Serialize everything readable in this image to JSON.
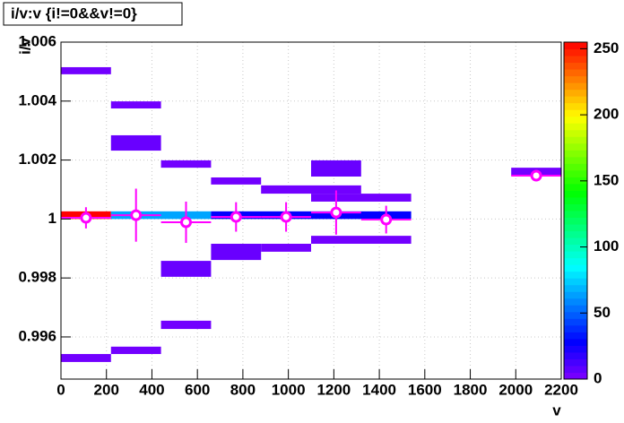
{
  "chart_data": {
    "type": "heatmap",
    "title": "i/v:v {i!=0&&v!=0}",
    "x_label": "v",
    "y_label": "i/v",
    "xlim": [
      0,
      2200
    ],
    "ylim": [
      0.99457,
      1.006
    ],
    "zlim": [
      0,
      255
    ],
    "xticks": [
      0,
      200,
      400,
      600,
      800,
      1000,
      1200,
      1400,
      1600,
      1800,
      2000,
      2200
    ],
    "yticks": [
      0.996,
      0.998,
      1,
      1.002,
      1.004,
      1.006
    ],
    "zticks": [
      0,
      50,
      100,
      150,
      200,
      250
    ],
    "grid": true,
    "colormap": "rainbow",
    "cells": [
      {
        "x": [
          0,
          220
        ],
        "y": [
          1.00491,
          1.00515
        ],
        "z": 3
      },
      {
        "x": [
          220,
          440
        ],
        "y": [
          1.00375,
          1.00399
        ],
        "z": 3
      },
      {
        "x": [
          220,
          440
        ],
        "y": [
          1.00232,
          1.00284
        ],
        "z": 5
      },
      {
        "x": [
          440,
          660
        ],
        "y": [
          1.00174,
          1.00199
        ],
        "z": 3
      },
      {
        "x": [
          660,
          880
        ],
        "y": [
          1.00117,
          1.00141
        ],
        "z": 3
      },
      {
        "x": [
          880,
          1100
        ],
        "y": [
          1.00086,
          1.00114
        ],
        "z": 3
      },
      {
        "x": [
          1100,
          1320
        ],
        "y": [
          1.00144,
          1.00199
        ],
        "z": 5
      },
      {
        "x": [
          1100,
          1320
        ],
        "y": [
          1.00086,
          1.00114
        ],
        "z": 3
      },
      {
        "x": [
          1100,
          1540
        ],
        "y": [
          1.00059,
          1.00086
        ],
        "z": 3
      },
      {
        "x": [
          0,
          220
        ],
        "y": [
          1.0,
          1.00026
        ],
        "z": 255
      },
      {
        "x": [
          220,
          660
        ],
        "y": [
          1.0,
          1.00026
        ],
        "z": 65
      },
      {
        "x": [
          660,
          1540
        ],
        "y": [
          1.0,
          1.00026
        ],
        "z": 28
      },
      {
        "x": [
          1100,
          1540
        ],
        "y": [
          0.99916,
          0.99943
        ],
        "z": 3
      },
      {
        "x": [
          880,
          1100
        ],
        "y": [
          0.99889,
          0.99916
        ],
        "z": 3
      },
      {
        "x": [
          660,
          880
        ],
        "y": [
          0.99861,
          0.99916
        ],
        "z": 5
      },
      {
        "x": [
          440,
          660
        ],
        "y": [
          0.99804,
          0.99858
        ],
        "z": 5
      },
      {
        "x": [
          440,
          660
        ],
        "y": [
          0.99627,
          0.99655
        ],
        "z": 3
      },
      {
        "x": [
          220,
          440
        ],
        "y": [
          0.99542,
          0.99567
        ],
        "z": 3
      },
      {
        "x": [
          0,
          220
        ],
        "y": [
          0.99515,
          0.99542
        ],
        "z": 3
      },
      {
        "x": [
          1980,
          2200
        ],
        "y": [
          1.00147,
          1.00174
        ],
        "z": 3
      }
    ],
    "profile": {
      "color": "#ff00ff",
      "xerr": 110,
      "x": [
        110,
        330,
        550,
        770,
        990,
        1210,
        1430,
        2090
      ],
      "values": [
        1.00004,
        1.00013,
        0.99989,
        1.00007,
        1.00007,
        1.00022,
        0.99998,
        1.00147
      ],
      "errors": [
        0.00036,
        0.0009,
        0.0007,
        0.0005,
        0.0005,
        0.00075,
        0.00047,
        0
      ]
    }
  }
}
